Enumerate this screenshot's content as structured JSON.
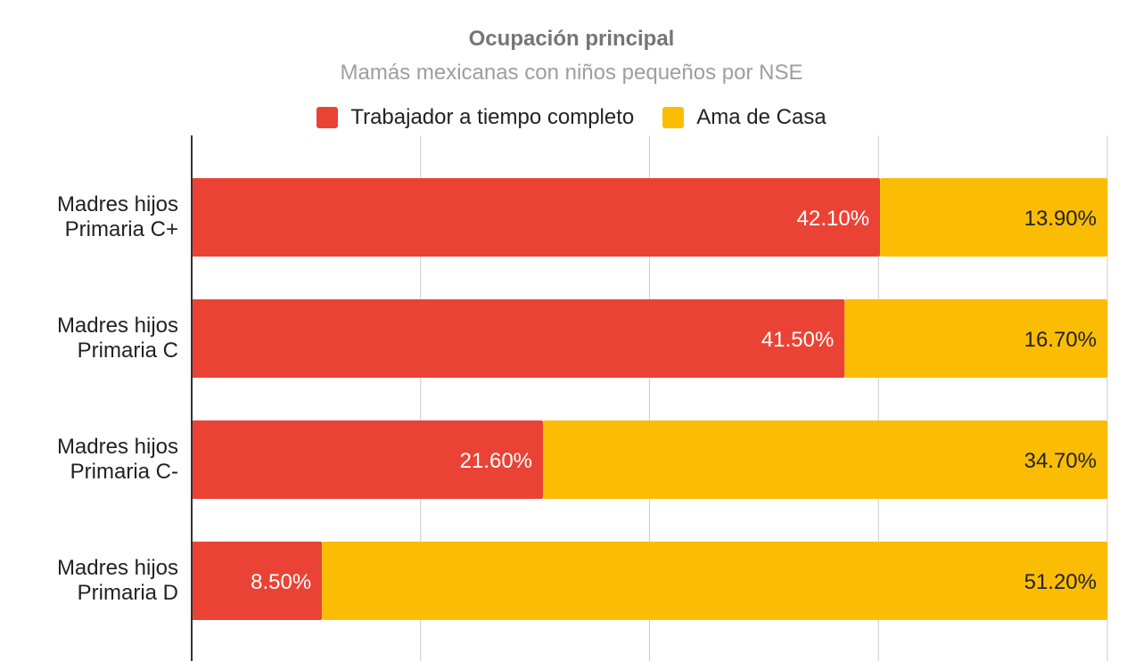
{
  "chart_data": {
    "type": "bar",
    "orientation": "horizontal",
    "stacked": true,
    "title": "Ocupación principal",
    "subtitle": "Mamás mexicanas con niños pequeños por NSE",
    "categories": [
      "Madres hijos Primaria C+",
      "Madres hijos Primaria C",
      "Madres hijos Primaria C-",
      "Madres hijos Primaria D"
    ],
    "category_lines": [
      [
        "Madres hijos",
        "Primaria C+"
      ],
      [
        "Madres hijos",
        "Primaria C"
      ],
      [
        "Madres hijos",
        "Primaria C-"
      ],
      [
        "Madres hijos",
        "Primaria D"
      ]
    ],
    "series": [
      {
        "name": "Trabajador a tiempo completo",
        "values": [
          42.1,
          41.5,
          21.6,
          8.5
        ],
        "labels": [
          "42.10%",
          "41.50%",
          "21.60%",
          "8.50%"
        ],
        "color": "#ea4335",
        "label_color": "#ffffff"
      },
      {
        "name": "Ama de Casa",
        "values": [
          13.9,
          16.7,
          34.7,
          51.2
        ],
        "labels": [
          "13.90%",
          "16.70%",
          "34.70%",
          "51.20%"
        ],
        "color": "#fbbc04",
        "label_color": "#222222"
      }
    ],
    "grid": true,
    "legend_position": "top"
  },
  "colors": {
    "axis": "#333333",
    "grid": "#cccccc",
    "title": "#757575",
    "subtitle": "#9e9e9e",
    "text": "#222222"
  }
}
